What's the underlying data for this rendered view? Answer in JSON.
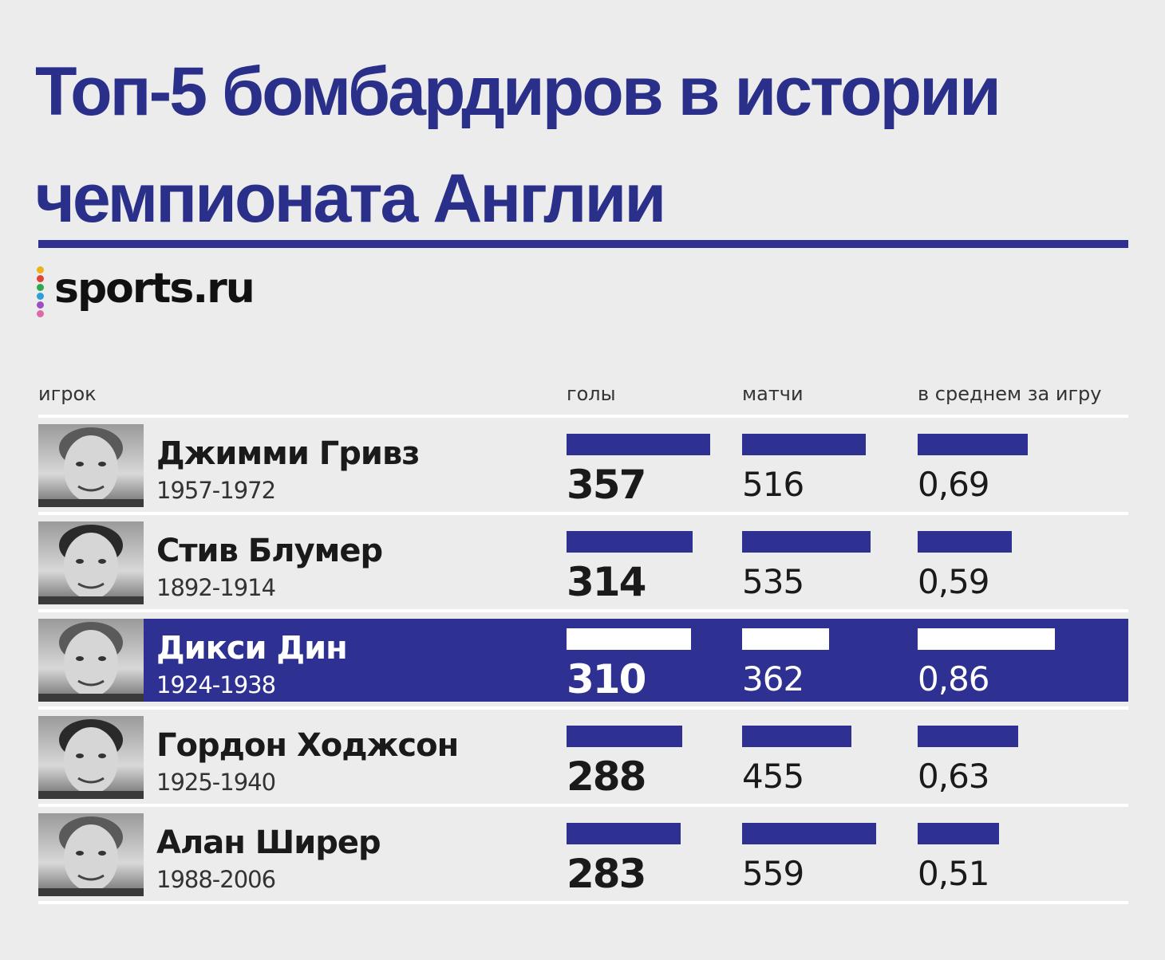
{
  "title_lines": [
    "Топ-5 бомбардиров в истории",
    "чемпионата Англии"
  ],
  "logo": {
    "text": "sports.ru",
    "dot_colors": [
      "#e8b21a",
      "#e0413a",
      "#2fa84f",
      "#2b9fd6",
      "#9b4fc4",
      "#e06aa8"
    ]
  },
  "colors": {
    "accent": "#2e3192",
    "title": "#2a2f8a",
    "background": "#ececec"
  },
  "chart_data": {
    "type": "table",
    "title": "Топ-5 бомбардиров в истории чемпионата Англии",
    "columns": [
      "игрок",
      "голы",
      "матчи",
      "в среднем за игру"
    ],
    "highlighted_row": 2,
    "rows": [
      {
        "name": "Джимми Гривз",
        "years": "1957-1972",
        "goals": 357,
        "matches": 516,
        "avg": 0.69,
        "goals_label": "357",
        "matches_label": "516",
        "avg_label": "0,69"
      },
      {
        "name": "Стив Блумер",
        "years": "1892-1914",
        "goals": 314,
        "matches": 535,
        "avg": 0.59,
        "goals_label": "314",
        "matches_label": "535",
        "avg_label": "0,59"
      },
      {
        "name": "Дикси Дин",
        "years": "1924-1938",
        "goals": 310,
        "matches": 362,
        "avg": 0.86,
        "goals_label": "310",
        "matches_label": "362",
        "avg_label": "0,86"
      },
      {
        "name": "Гордон Ходжсон",
        "years": "1925-1940",
        "goals": 288,
        "matches": 455,
        "avg": 0.63,
        "goals_label": "288",
        "matches_label": "455",
        "avg_label": "0,63"
      },
      {
        "name": "Алан Ширер",
        "years": "1988-2006",
        "goals": 283,
        "matches": 559,
        "avg": 0.51,
        "goals_label": "283",
        "matches_label": "559",
        "avg_label": "0,51"
      }
    ]
  }
}
